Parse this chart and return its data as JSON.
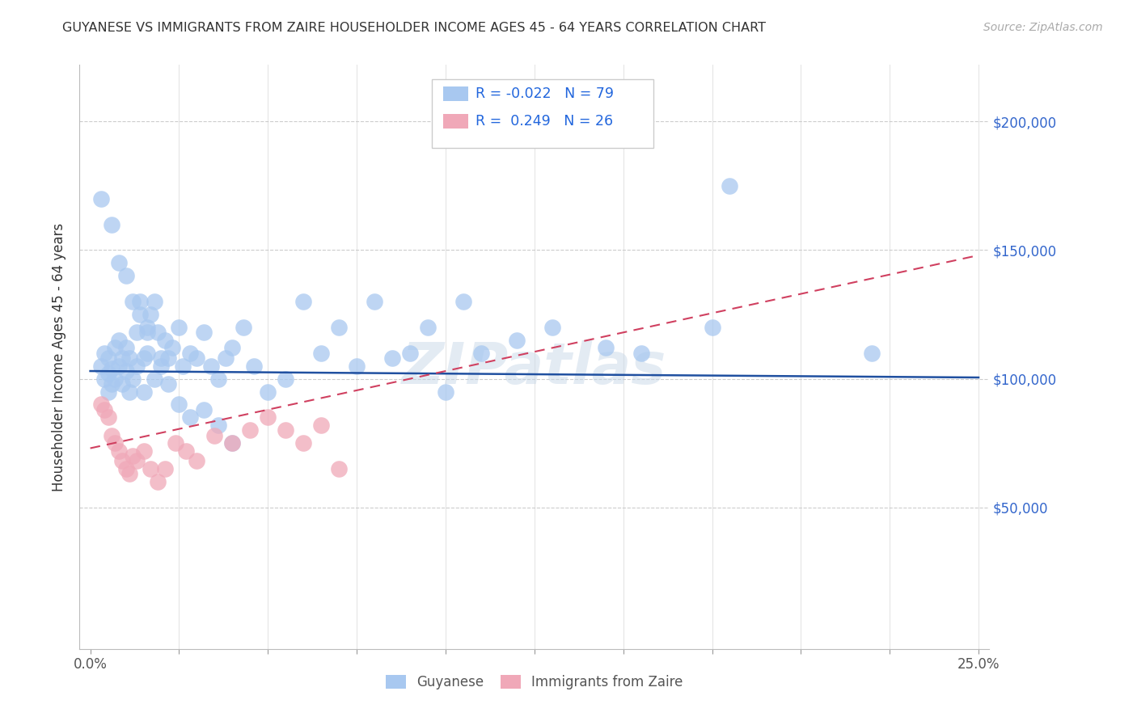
{
  "title": "GUYANESE VS IMMIGRANTS FROM ZAIRE HOUSEHOLDER INCOME AGES 45 - 64 YEARS CORRELATION CHART",
  "source": "Source: ZipAtlas.com",
  "ylabel": "Householder Income Ages 45 - 64 years",
  "x_min": 0.0,
  "x_max": 0.25,
  "y_min": 0,
  "y_max": 220000,
  "r_guyanese": -0.022,
  "n_guyanese": 79,
  "r_zaire": 0.249,
  "n_zaire": 26,
  "color_guyanese": "#a8c8f0",
  "color_zaire": "#f0a8b8",
  "line_color_guyanese": "#2050a0",
  "line_color_zaire": "#d04060",
  "watermark": "ZIPatlas",
  "guyanese_line": [
    0.0,
    103000,
    0.25,
    100500
  ],
  "zaire_line": [
    0.0,
    73000,
    0.25,
    148000
  ],
  "guyanese_x": [
    0.003,
    0.004,
    0.004,
    0.005,
    0.005,
    0.005,
    0.006,
    0.006,
    0.007,
    0.007,
    0.008,
    0.008,
    0.009,
    0.009,
    0.01,
    0.01,
    0.011,
    0.011,
    0.012,
    0.013,
    0.013,
    0.014,
    0.015,
    0.015,
    0.016,
    0.016,
    0.017,
    0.018,
    0.019,
    0.02,
    0.021,
    0.022,
    0.023,
    0.025,
    0.026,
    0.028,
    0.03,
    0.032,
    0.034,
    0.036,
    0.038,
    0.04,
    0.043,
    0.046,
    0.05,
    0.055,
    0.06,
    0.065,
    0.07,
    0.075,
    0.08,
    0.085,
    0.09,
    0.095,
    0.1,
    0.105,
    0.11,
    0.12,
    0.13,
    0.145,
    0.155,
    0.175,
    0.22,
    0.003,
    0.006,
    0.008,
    0.01,
    0.012,
    0.014,
    0.016,
    0.018,
    0.02,
    0.022,
    0.025,
    0.028,
    0.032,
    0.036,
    0.04,
    0.18
  ],
  "guyanese_y": [
    105000,
    100000,
    110000,
    95000,
    102000,
    108000,
    98000,
    104000,
    100000,
    112000,
    115000,
    105000,
    108000,
    98000,
    103000,
    112000,
    108000,
    95000,
    100000,
    118000,
    105000,
    130000,
    108000,
    95000,
    120000,
    110000,
    125000,
    130000,
    118000,
    108000,
    115000,
    108000,
    112000,
    120000,
    105000,
    110000,
    108000,
    118000,
    105000,
    100000,
    108000,
    112000,
    120000,
    105000,
    95000,
    100000,
    130000,
    110000,
    120000,
    105000,
    130000,
    108000,
    110000,
    120000,
    95000,
    130000,
    110000,
    115000,
    120000,
    112000,
    110000,
    120000,
    110000,
    170000,
    160000,
    145000,
    140000,
    130000,
    125000,
    118000,
    100000,
    105000,
    98000,
    90000,
    85000,
    88000,
    82000,
    75000,
    175000
  ],
  "zaire_x": [
    0.003,
    0.004,
    0.005,
    0.006,
    0.007,
    0.008,
    0.009,
    0.01,
    0.011,
    0.012,
    0.013,
    0.015,
    0.017,
    0.019,
    0.021,
    0.024,
    0.027,
    0.03,
    0.035,
    0.04,
    0.045,
    0.05,
    0.055,
    0.06,
    0.065,
    0.07
  ],
  "zaire_y": [
    90000,
    88000,
    85000,
    78000,
    75000,
    72000,
    68000,
    65000,
    63000,
    70000,
    68000,
    72000,
    65000,
    60000,
    65000,
    75000,
    72000,
    68000,
    78000,
    75000,
    80000,
    85000,
    80000,
    75000,
    82000,
    65000
  ]
}
